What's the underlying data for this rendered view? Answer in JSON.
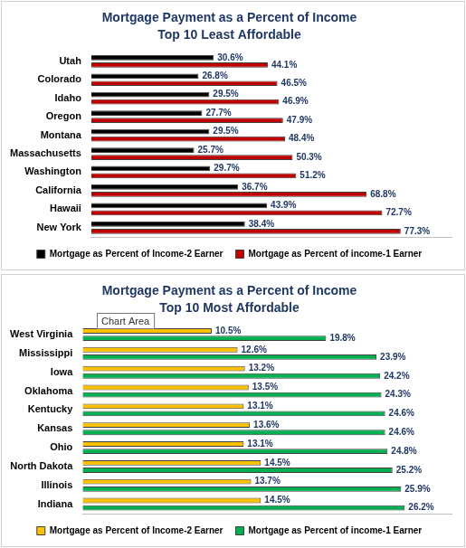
{
  "chart_data": [
    {
      "type": "bar",
      "orientation": "horizontal",
      "title": "Mortgage Payment as a Percent of Income",
      "subtitle": "Top 10 Least Affordable",
      "categories": [
        "Utah",
        "Colorado",
        "Idaho",
        "Oregon",
        "Montana",
        "Massachusetts",
        "Washington",
        "California",
        "Hawaii",
        "New York"
      ],
      "series": [
        {
          "name": "Mortgage as Percent of Income-2 Earner",
          "color": "#000000",
          "values": [
            30.6,
            26.8,
            29.5,
            27.7,
            29.5,
            25.7,
            29.7,
            36.7,
            43.9,
            38.4
          ],
          "value_labels": [
            "30.6%",
            "26.8%",
            "29.5%",
            "27.7%",
            "29.5%",
            "25.7%",
            "29.7%",
            "36.7%",
            "43.9%",
            "38.4%"
          ]
        },
        {
          "name": "Mortgage as Percent of income-1 Earner",
          "color": "#c00000",
          "values": [
            44.1,
            46.5,
            46.9,
            47.9,
            48.4,
            50.3,
            51.2,
            68.8,
            72.7,
            77.3
          ],
          "value_labels": [
            "44.1%",
            "46.5%",
            "46.9%",
            "47.9%",
            "48.4%",
            "50.3%",
            "51.2%",
            "68.8%",
            "72.7%",
            "77.3%"
          ]
        }
      ],
      "xlim": [
        0,
        90
      ],
      "tick_labels": "y",
      "grid": false,
      "data_labels": true,
      "legend": "bottom"
    },
    {
      "type": "bar",
      "orientation": "horizontal",
      "title": "Mortgage Payment as a Percent of Income",
      "subtitle": "Top 10 Most Affordable",
      "annotation": "Chart Area",
      "categories": [
        "West Virginia",
        "Mississippi",
        "Iowa",
        "Oklahoma",
        "Kentucky",
        "Kansas",
        "Ohio",
        "North Dakota",
        "Illinois",
        "Indiana"
      ],
      "series": [
        {
          "name": "Mortgage as Percent of Income-2 Earner",
          "color": "#ffc000",
          "values": [
            10.5,
            12.6,
            13.2,
            13.5,
            13.1,
            13.6,
            13.1,
            14.5,
            13.7,
            14.5
          ],
          "value_labels": [
            "10.5%",
            "12.6%",
            "13.2%",
            "13.5%",
            "13.1%",
            "13.6%",
            "13.1%",
            "14.5%",
            "13.7%",
            "14.5%"
          ]
        },
        {
          "name": "Mortgage as Percent of income-1 Earner",
          "color": "#00b050",
          "values": [
            19.8,
            23.9,
            24.2,
            24.3,
            24.6,
            24.6,
            24.8,
            25.2,
            25.9,
            26.2
          ],
          "value_labels": [
            "19.8%",
            "23.9%",
            "24.2%",
            "24.3%",
            "24.6%",
            "24.6%",
            "24.8%",
            "25.2%",
            "25.9%",
            "26.2%"
          ]
        }
      ],
      "xlim": [
        0,
        30
      ],
      "tick_labels": "y",
      "grid": false,
      "data_labels": true,
      "legend": "bottom"
    }
  ]
}
